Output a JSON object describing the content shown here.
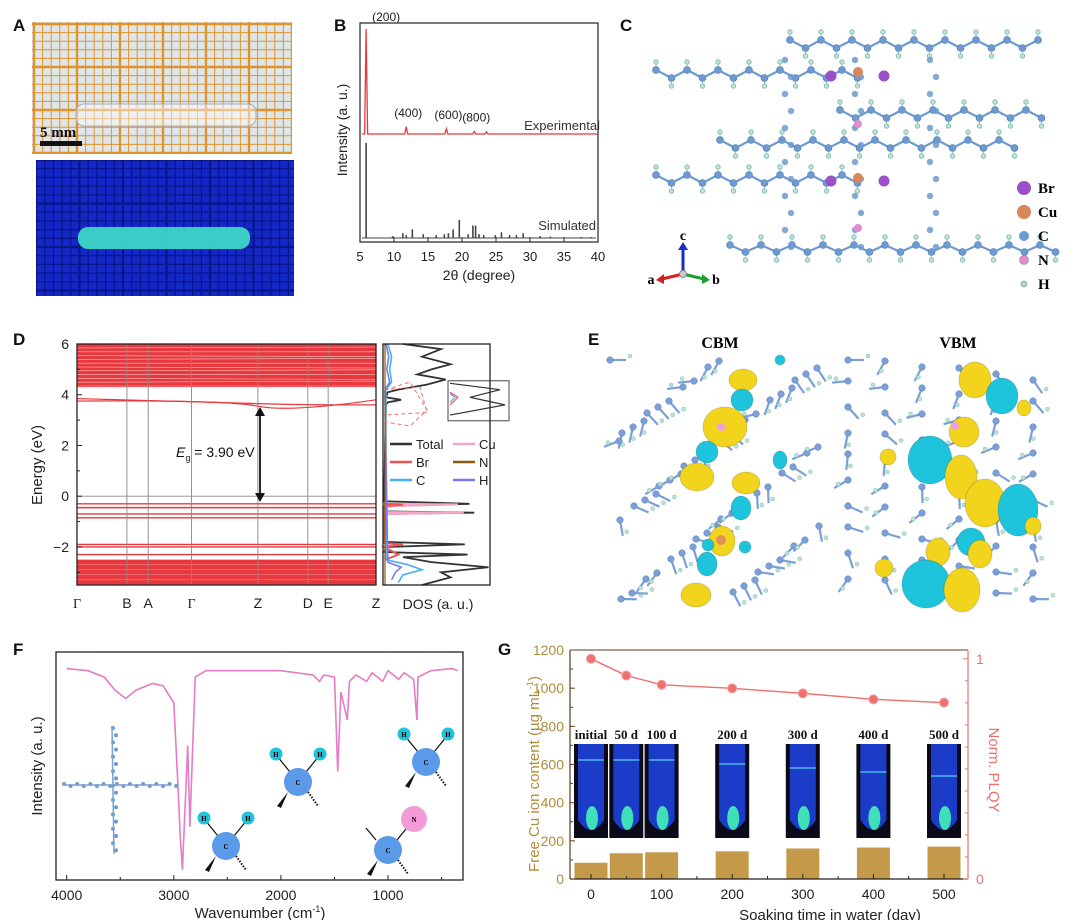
{
  "panels": {
    "A": {
      "label": "A",
      "scale_bar": "5 mm",
      "colors": {
        "grid": "#e0932b",
        "paper": "#dfe6ea",
        "uv_bg": "#1428c8",
        "glow": "#3fe0c8"
      }
    },
    "B": {
      "label": "B",
      "chart_data": {
        "type": "line",
        "title": "",
        "xlabel": "2θ (degree)",
        "ylabel": "Intensity (a. u.)",
        "xlim": [
          5,
          40
        ],
        "xticks": [
          5,
          10,
          15,
          20,
          25,
          30,
          35,
          40
        ],
        "series": [
          {
            "name": "Experimental",
            "color": "#e8383d",
            "peaks": [
              {
                "x": 5.9,
                "h": 1.0,
                "label": "(200)"
              },
              {
                "x": 11.8,
                "h": 0.07,
                "label": "(400)"
              },
              {
                "x": 17.7,
                "h": 0.05,
                "label": "(600)"
              },
              {
                "x": 21.8,
                "h": 0.025,
                "label": "(800)"
              },
              {
                "x": 23.6,
                "h": 0.02,
                "label": ""
              }
            ]
          },
          {
            "name": "Simulated",
            "color": "#444444",
            "peaks": [
              {
                "x": 5.9,
                "h": 1.0
              },
              {
                "x": 9.8,
                "h": 0.02
              },
              {
                "x": 11.3,
                "h": 0.05
              },
              {
                "x": 11.8,
                "h": 0.03
              },
              {
                "x": 12.7,
                "h": 0.09
              },
              {
                "x": 14.3,
                "h": 0.04
              },
              {
                "x": 16.2,
                "h": 0.03
              },
              {
                "x": 17.4,
                "h": 0.04
              },
              {
                "x": 18.0,
                "h": 0.05
              },
              {
                "x": 18.7,
                "h": 0.09
              },
              {
                "x": 19.6,
                "h": 0.19
              },
              {
                "x": 20.9,
                "h": 0.04
              },
              {
                "x": 21.6,
                "h": 0.13
              },
              {
                "x": 22.0,
                "h": 0.13
              },
              {
                "x": 22.5,
                "h": 0.04
              },
              {
                "x": 23.2,
                "h": 0.03
              },
              {
                "x": 24.9,
                "h": 0.03
              },
              {
                "x": 25.8,
                "h": 0.06
              },
              {
                "x": 27.0,
                "h": 0.03
              },
              {
                "x": 28.0,
                "h": 0.03
              },
              {
                "x": 29.0,
                "h": 0.05
              },
              {
                "x": 31.5,
                "h": 0.02
              },
              {
                "x": 33.0,
                "h": 0.015
              },
              {
                "x": 37.5,
                "h": 0.01
              },
              {
                "x": 39.0,
                "h": 0.01
              }
            ]
          }
        ]
      }
    },
    "C": {
      "label": "C",
      "legend": [
        {
          "symbol": "Br",
          "color": "#9b4fc9"
        },
        {
          "symbol": "Cu",
          "color": "#d9875a"
        },
        {
          "symbol": "C",
          "color": "#6d9ad0"
        },
        {
          "symbol": "N",
          "color": "#e58ad0"
        },
        {
          "symbol": "H",
          "color": "#a8dcc0"
        }
      ],
      "axes": {
        "a": "a",
        "b": "b",
        "c": "c"
      }
    },
    "D": {
      "label": "D",
      "chart_data": {
        "type": "line",
        "title": "",
        "xlabel": "",
        "ylabel": "Energy (eV)",
        "ylim": [
          -3.5,
          6
        ],
        "yticks": [
          -2,
          0,
          2,
          4,
          6
        ],
        "kpoints": [
          "Γ",
          "B",
          "A",
          "Γ",
          "Z",
          "D",
          "E",
          "Z"
        ],
        "kpoint_positions": [
          0,
          0.167,
          0.238,
          0.383,
          0.605,
          0.772,
          0.84,
          1.0
        ],
        "band_color": "#e8383d",
        "conduction_band_min": 3.9,
        "valence_bands": [
          -0.3,
          -0.45,
          -0.7,
          -0.85,
          -1.9,
          -2.0,
          -2.3
        ],
        "annotation": {
          "symbol": "E",
          "subscript": "g",
          "text": " = 3.90 eV",
          "gap_ev": 3.9
        }
      },
      "dos": {
        "xlabel": "DOS (a. u.)",
        "legend": [
          {
            "name": "Total",
            "color": "#333333"
          },
          {
            "name": "Cu",
            "color": "#f4a5c8"
          },
          {
            "name": "Br",
            "color": "#f05050"
          },
          {
            "name": "N",
            "color": "#8b5a14"
          },
          {
            "name": "C",
            "color": "#4ab0f0"
          },
          {
            "name": "H",
            "color": "#7b7bf0"
          }
        ]
      }
    },
    "E": {
      "label": "E",
      "titles": [
        "CBM",
        "VBM"
      ],
      "colors": {
        "lobe_pos": "#f2d41c",
        "lobe_neg": "#1ec4dc",
        "bond": "#7b9fd6",
        "h": "#b9e6d0"
      }
    },
    "F": {
      "label": "F",
      "chart_data": {
        "type": "line",
        "title": "",
        "xlabel": "Wavenumber (cm⁻¹)",
        "ylabel": "Intensity (a. u.)",
        "xlim": [
          4100,
          300
        ],
        "xticks": [
          4000,
          3000,
          2000,
          1000
        ],
        "color": "#e57cc4",
        "points": [
          [
            4000,
            0.96
          ],
          [
            3800,
            0.95
          ],
          [
            3650,
            0.92
          ],
          [
            3550,
            0.86
          ],
          [
            3450,
            0.82
          ],
          [
            3350,
            0.86
          ],
          [
            3200,
            0.89
          ],
          [
            3100,
            0.88
          ],
          [
            3000,
            0.8
          ],
          [
            2960,
            0.4
          ],
          [
            2940,
            0.18
          ],
          [
            2920,
            0.02
          ],
          [
            2900,
            0.25
          ],
          [
            2870,
            0.6
          ],
          [
            2850,
            0.22
          ],
          [
            2830,
            0.5
          ],
          [
            2800,
            0.92
          ],
          [
            2700,
            0.95
          ],
          [
            2000,
            0.95
          ],
          [
            1700,
            0.93
          ],
          [
            1640,
            0.9
          ],
          [
            1600,
            0.93
          ],
          [
            1500,
            0.92
          ],
          [
            1470,
            0.48
          ],
          [
            1440,
            0.85
          ],
          [
            1380,
            0.72
          ],
          [
            1360,
            0.9
          ],
          [
            1300,
            0.93
          ],
          [
            1200,
            0.9
          ],
          [
            1150,
            0.94
          ],
          [
            1050,
            0.9
          ],
          [
            1000,
            0.95
          ],
          [
            900,
            0.91
          ],
          [
            850,
            0.94
          ],
          [
            760,
            0.91
          ],
          [
            730,
            0.72
          ],
          [
            720,
            0.92
          ],
          [
            600,
            0.95
          ],
          [
            400,
            0.96
          ],
          [
            350,
            0.95
          ]
        ],
        "insets": [
          {
            "center": "C",
            "neighbors": [
              "H",
              "H"
            ],
            "mode": "stretch"
          },
          {
            "center": "C",
            "neighbors": [
              "H",
              "H"
            ],
            "mode": "scissor"
          },
          {
            "center": "C",
            "neighbors": [
              "H",
              "H"
            ],
            "mode": "rock"
          },
          {
            "center": "C",
            "neighbors": [
              "N"
            ],
            "mode": "stretch"
          }
        ]
      }
    },
    "G": {
      "label": "G",
      "chart_data": {
        "type": "bar",
        "title": "",
        "xlabel": "Soaking time in water (day)",
        "ylabel": "Free Cu ion content (µg mL⁻¹)",
        "y2label": "Norm. PLQY",
        "x": [
          0,
          50,
          100,
          200,
          300,
          400,
          500
        ],
        "xticks": [
          0,
          100,
          200,
          300,
          400,
          500
        ],
        "ylim": [
          0,
          1200
        ],
        "yticks": [
          0,
          200,
          400,
          600,
          800,
          1000,
          1200
        ],
        "y2lim": [
          0,
          1.04
        ],
        "y2ticks": [
          0,
          1
        ],
        "series": [
          {
            "name": "Free Cu ion content",
            "type": "bar",
            "axis": "left",
            "color": "#c49a4a",
            "values": [
              85,
              135,
              140,
              145,
              160,
              165,
              170
            ]
          },
          {
            "name": "Norm. PLQY",
            "type": "line",
            "axis": "right",
            "color": "#f07070",
            "values": [
              1.0,
              0.924,
              0.882,
              0.866,
              0.843,
              0.816,
              0.801
            ]
          }
        ],
        "photo_labels": [
          "initial",
          "50 d",
          "100 d",
          "200 d",
          "300 d",
          "400 d",
          "500 d"
        ],
        "axis_colors": {
          "left": "#b08c3a",
          "right": "#f07070",
          "axis": "#5a3e1a"
        }
      }
    }
  }
}
